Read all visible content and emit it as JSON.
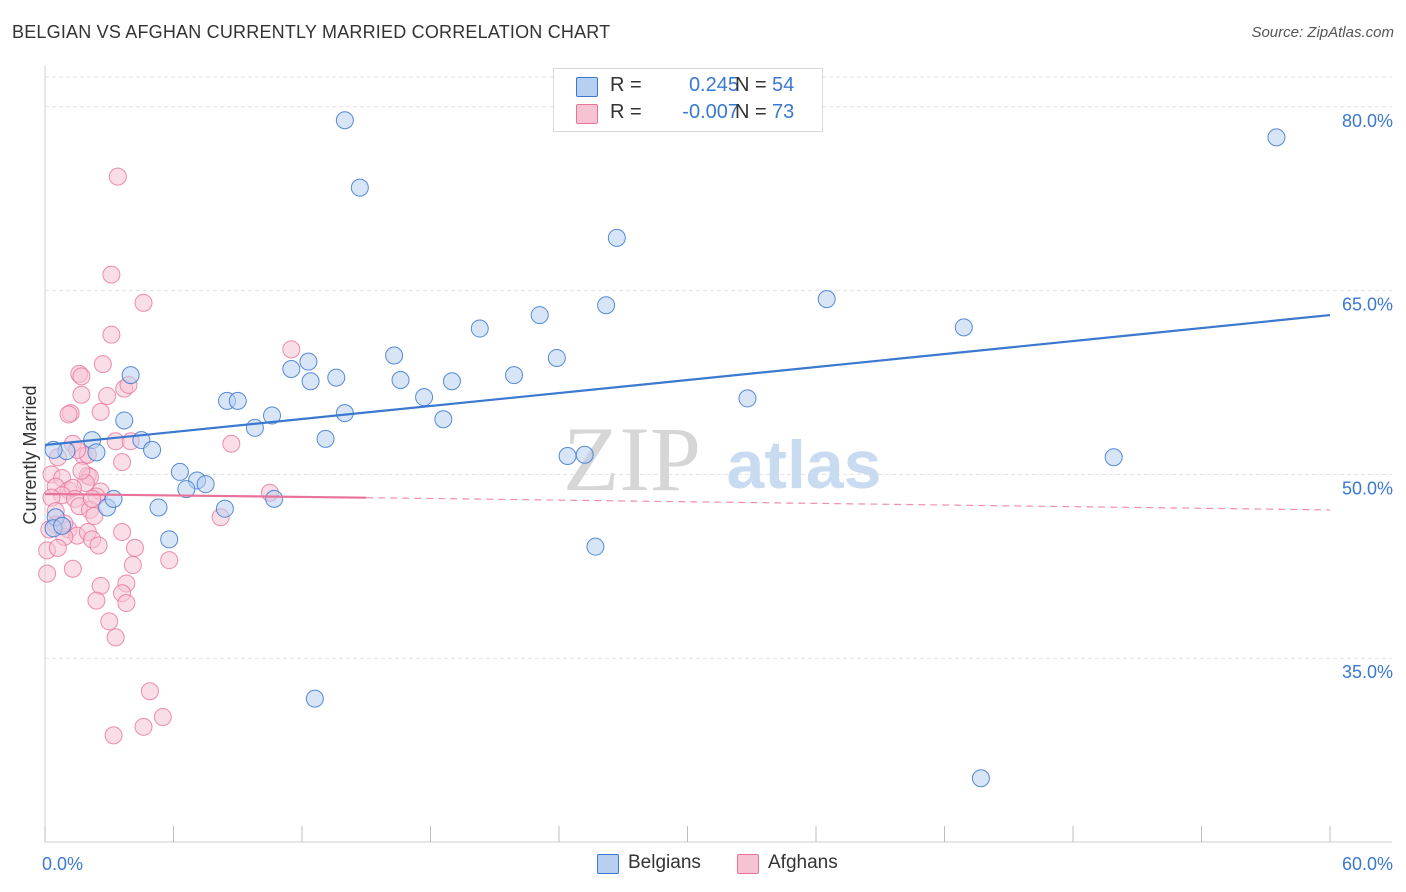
{
  "title": "BELGIAN VS AFGHAN CURRENTLY MARRIED CORRELATION CHART",
  "source": "Source: ZipAtlas.com",
  "watermark": {
    "zip": "ZIP",
    "atlas": "atlas"
  },
  "colors": {
    "belgian": "#3b78d0",
    "belgian_fill": "#b8d0f0",
    "afghan": "#e8739a",
    "afghan_fill": "#f6c3d3",
    "axis_label": "#3b78d0",
    "grid": "#e3e3e3"
  },
  "legend": {
    "rows": [
      {
        "r_label": "R =",
        "r_value": "0.245",
        "n_label": "N =",
        "n_value": "54"
      },
      {
        "r_label": "R =",
        "r_value": "-0.007",
        "n_label": "N =",
        "n_value": "73"
      }
    ]
  },
  "bottom_legend": {
    "belgians": "Belgians",
    "afghans": "Afghans"
  },
  "chart_data": {
    "type": "scatter",
    "title": "BELGIAN VS AFGHAN CURRENTLY MARRIED CORRELATION CHART",
    "xlabel": "",
    "ylabel": "Currently Married",
    "xlim": [
      0,
      60
    ],
    "ylim": [
      20,
      83
    ],
    "x_tick_labels": [
      "0.0%",
      "60.0%"
    ],
    "y_ticks": [
      35,
      50,
      65,
      80
    ],
    "y_tick_labels": [
      "35.0%",
      "50.0%",
      "65.0%",
      "80.0%"
    ],
    "grid": true,
    "series": [
      {
        "name": "Belgians",
        "r": 0.245,
        "n": 54,
        "trend": {
          "x0": 0,
          "y0": 52.4,
          "x1": 60,
          "y1": 63.0
        },
        "points": [
          [
            14.0,
            78.9
          ],
          [
            14.7,
            73.4
          ],
          [
            26.7,
            69.3
          ],
          [
            57.5,
            77.5
          ],
          [
            36.5,
            64.3
          ],
          [
            26.2,
            63.8
          ],
          [
            23.1,
            63.0
          ],
          [
            20.3,
            61.9
          ],
          [
            42.9,
            62.0
          ],
          [
            16.3,
            59.7
          ],
          [
            11.5,
            58.6
          ],
          [
            12.3,
            59.2
          ],
          [
            23.9,
            59.5
          ],
          [
            21.9,
            58.1
          ],
          [
            4.0,
            58.1
          ],
          [
            13.6,
            57.9
          ],
          [
            12.4,
            57.6
          ],
          [
            16.6,
            57.7
          ],
          [
            19.0,
            57.6
          ],
          [
            17.7,
            56.3
          ],
          [
            32.8,
            56.2
          ],
          [
            8.5,
            56.0
          ],
          [
            9.0,
            56.0
          ],
          [
            14.0,
            55.0
          ],
          [
            10.6,
            54.8
          ],
          [
            3.7,
            54.4
          ],
          [
            18.6,
            54.5
          ],
          [
            9.8,
            53.8
          ],
          [
            13.1,
            52.9
          ],
          [
            4.5,
            52.8
          ],
          [
            2.2,
            52.8
          ],
          [
            1.0,
            51.9
          ],
          [
            2.4,
            51.8
          ],
          [
            5.0,
            52.0
          ],
          [
            24.4,
            51.5
          ],
          [
            49.9,
            51.4
          ],
          [
            6.3,
            50.2
          ],
          [
            7.1,
            49.5
          ],
          [
            7.5,
            49.2
          ],
          [
            6.6,
            48.8
          ],
          [
            10.7,
            48.0
          ],
          [
            5.3,
            47.3
          ],
          [
            2.9,
            47.3
          ],
          [
            8.4,
            47.2
          ],
          [
            0.5,
            46.5
          ],
          [
            0.4,
            45.6
          ],
          [
            5.8,
            44.7
          ],
          [
            0.4,
            52.0
          ],
          [
            25.7,
            44.1
          ],
          [
            25.2,
            51.6
          ],
          [
            12.6,
            31.7
          ],
          [
            43.7,
            25.2
          ],
          [
            0.8,
            45.8
          ],
          [
            3.2,
            48.0
          ]
        ]
      },
      {
        "name": "Afghans",
        "r": -0.007,
        "n": 73,
        "trend": {
          "x0": 0,
          "y0": 48.4,
          "x1": 15,
          "y1": 48.1,
          "x1_dashed": 60,
          "y1_dashed": 47.1
        },
        "points": [
          [
            3.4,
            74.3
          ],
          [
            3.1,
            66.3
          ],
          [
            4.6,
            64.0
          ],
          [
            3.1,
            61.4
          ],
          [
            11.5,
            60.2
          ],
          [
            2.7,
            59.0
          ],
          [
            1.6,
            58.2
          ],
          [
            1.7,
            58.0
          ],
          [
            3.7,
            57.0
          ],
          [
            3.9,
            57.3
          ],
          [
            1.7,
            56.5
          ],
          [
            2.9,
            56.4
          ],
          [
            1.2,
            55.0
          ],
          [
            1.1,
            54.9
          ],
          [
            2.6,
            55.1
          ],
          [
            8.7,
            52.5
          ],
          [
            3.3,
            52.7
          ],
          [
            1.3,
            52.5
          ],
          [
            4.0,
            52.7
          ],
          [
            1.8,
            51.5
          ],
          [
            2.0,
            51.6
          ],
          [
            1.5,
            52.0
          ],
          [
            0.6,
            51.4
          ],
          [
            3.6,
            51.0
          ],
          [
            0.3,
            50.0
          ],
          [
            0.8,
            49.7
          ],
          [
            2.0,
            49.9
          ],
          [
            2.1,
            49.8
          ],
          [
            1.9,
            49.3
          ],
          [
            0.5,
            49.0
          ],
          [
            1.1,
            48.7
          ],
          [
            1.3,
            48.9
          ],
          [
            2.6,
            48.6
          ],
          [
            0.8,
            48.3
          ],
          [
            1.4,
            48.0
          ],
          [
            0.3,
            48.1
          ],
          [
            2.4,
            48.2
          ],
          [
            10.5,
            48.5
          ],
          [
            1.6,
            47.4
          ],
          [
            2.1,
            47.1
          ],
          [
            0.5,
            47.0
          ],
          [
            2.3,
            46.6
          ],
          [
            8.2,
            46.5
          ],
          [
            0.5,
            45.9
          ],
          [
            1.1,
            45.5
          ],
          [
            0.2,
            45.5
          ],
          [
            3.6,
            45.3
          ],
          [
            1.5,
            45.0
          ],
          [
            2.0,
            45.3
          ],
          [
            0.9,
            44.9
          ],
          [
            2.2,
            44.7
          ],
          [
            2.5,
            44.2
          ],
          [
            4.2,
            44.0
          ],
          [
            0.1,
            43.8
          ],
          [
            5.8,
            43.0
          ],
          [
            4.1,
            42.6
          ],
          [
            1.3,
            42.3
          ],
          [
            0.1,
            41.9
          ],
          [
            3.8,
            41.1
          ],
          [
            2.6,
            40.9
          ],
          [
            3.6,
            40.3
          ],
          [
            2.4,
            39.7
          ],
          [
            3.8,
            39.5
          ],
          [
            3.0,
            38.0
          ],
          [
            3.3,
            36.7
          ],
          [
            4.9,
            32.3
          ],
          [
            5.5,
            30.2
          ],
          [
            4.6,
            29.4
          ],
          [
            3.2,
            28.7
          ],
          [
            0.9,
            46.0
          ],
          [
            1.7,
            50.3
          ],
          [
            2.2,
            48.0
          ],
          [
            0.6,
            44.0
          ]
        ]
      }
    ]
  }
}
